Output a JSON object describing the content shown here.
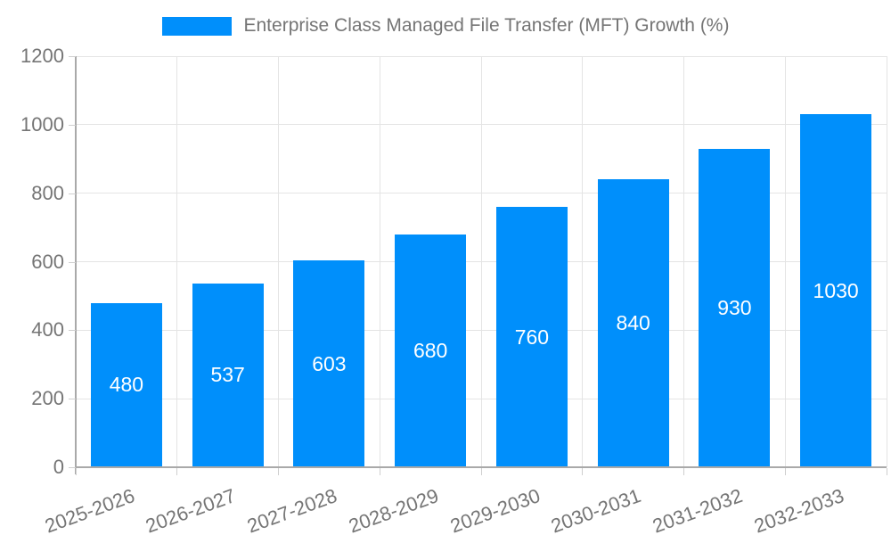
{
  "legend": {
    "label": "Enterprise Class Managed File Transfer (MFT) Growth (%)",
    "swatch_color": "#008FFB"
  },
  "chart_data": {
    "type": "bar",
    "title": "",
    "xlabel": "",
    "ylabel": "",
    "categories": [
      "2025-2026",
      "2026-2027",
      "2027-2028",
      "2028-2029",
      "2029-2030",
      "2030-2031",
      "2031-2032",
      "2032-2033"
    ],
    "series": [
      {
        "name": "Enterprise Class Managed File Transfer (MFT) Growth (%)",
        "values": [
          480,
          537,
          603,
          680,
          760,
          840,
          930,
          1030
        ]
      }
    ],
    "value_labels": [
      "480",
      "537",
      "603",
      "680",
      "760",
      "840",
      "930",
      "1030"
    ],
    "ylim": [
      0,
      1200
    ],
    "yticks": [
      0,
      200,
      400,
      600,
      800,
      1000,
      1200
    ],
    "grid": true,
    "legend_position": "top-center",
    "bar_color": "#008FFB",
    "value_label_color": "#ffffff",
    "axis_text_color": "#757575",
    "axis_line_color": "#a9a9a9",
    "gridline_color": "#e4e4e4"
  }
}
